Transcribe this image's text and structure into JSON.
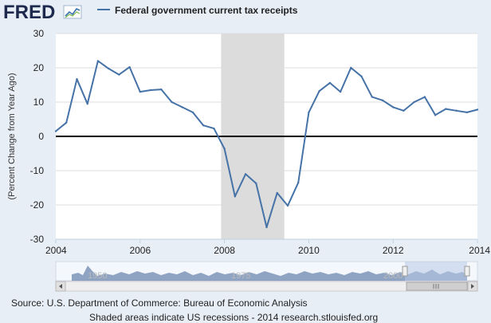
{
  "logo": {
    "text": "FRED"
  },
  "legend": {
    "label": "Federal government current tax receipts"
  },
  "footer": {
    "source": "Source: U.S. Department of Commerce: Bureau of Economic Analysis",
    "note": "Shaded areas indicate US recessions - 2014 research.stlouisfed.org"
  },
  "navigator": {
    "tick_labels": [
      "1950",
      "1975",
      "2000"
    ]
  },
  "colors": {
    "line": "#4572a7",
    "recession": "#dcdcdc",
    "plot_bg": "#ffffff",
    "page_bg": "#e8eef6",
    "navigator_fill": "#6d87b0"
  },
  "chart_data": {
    "type": "line",
    "title": "Federal government current tax receipts",
    "xlabel": "",
    "ylabel": "(Percent Change from Year Ago)",
    "xlim": [
      2004,
      2014
    ],
    "ylim": [
      -30,
      30
    ],
    "xticks": [
      "2004",
      "2006",
      "2008",
      "2010",
      "2012",
      "2014"
    ],
    "yticks": [
      "30",
      "20",
      "10",
      "0",
      "-10",
      "-20",
      "-30"
    ],
    "grid": "horizontal",
    "recessions": [
      [
        2007.92,
        2009.42
      ]
    ],
    "series": [
      {
        "name": "Federal government current tax receipts",
        "x": [
          2004.0,
          2004.25,
          2004.5,
          2004.75,
          2005.0,
          2005.25,
          2005.5,
          2005.75,
          2006.0,
          2006.25,
          2006.5,
          2006.75,
          2007.0,
          2007.25,
          2007.5,
          2007.75,
          2008.0,
          2008.25,
          2008.5,
          2008.75,
          2009.0,
          2009.25,
          2009.5,
          2009.75,
          2010.0,
          2010.25,
          2010.5,
          2010.75,
          2011.0,
          2011.25,
          2011.5,
          2011.75,
          2012.0,
          2012.25,
          2012.5,
          2012.75,
          2013.0,
          2013.25,
          2013.5,
          2013.75,
          2014.0
        ],
        "values": [
          1.5,
          4,
          16.7,
          9.5,
          22,
          19.8,
          18,
          20.2,
          13,
          13.5,
          13.7,
          10,
          8.5,
          7,
          3.2,
          2.3,
          -3.6,
          -17.5,
          -11,
          -13.7,
          -26.5,
          -16.5,
          -20.2,
          -13.5,
          7,
          13.2,
          15.6,
          13,
          20,
          17.5,
          11.5,
          10.5,
          8.5,
          7.5,
          10,
          11.5,
          6.2,
          8,
          7.5,
          7,
          7.8
        ]
      }
    ]
  }
}
